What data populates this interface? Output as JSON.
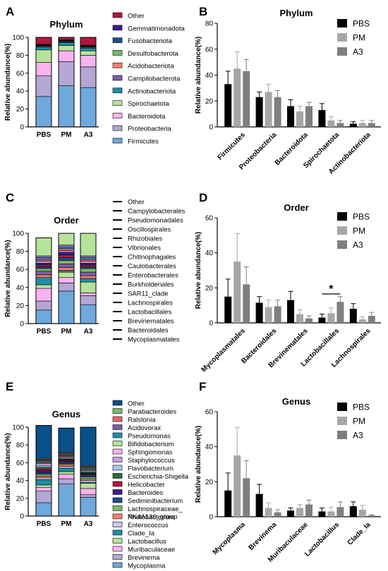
{
  "chart_data": [
    {
      "panel": "A",
      "type": "bar",
      "stacked": true,
      "title": "Phylum",
      "ylabel": "Relative abundance(%)",
      "xlabel": "",
      "ylim": [
        0,
        100
      ],
      "yticks": [
        0,
        20,
        40,
        60,
        80,
        100
      ],
      "categories": [
        "PBS",
        "PM",
        "A3"
      ],
      "series": [
        {
          "name": "Firmicutes",
          "color": "#6fa8dc",
          "values": [
            34,
            46,
            44
          ]
        },
        {
          "name": "Proteobacteria",
          "color": "#b4a7d6",
          "values": [
            23,
            27,
            23
          ]
        },
        {
          "name": "Bacteroidota",
          "color": "#f9b3f0",
          "values": [
            15,
            12,
            13
          ]
        },
        {
          "name": "Spirochaetota",
          "color": "#b6e39a",
          "values": [
            14,
            6,
            5
          ]
        },
        {
          "name": "Actinobacteriota",
          "color": "#1f8fa6",
          "values": [
            3,
            3,
            3
          ]
        },
        {
          "name": "Campilobacterota",
          "color": "#7b5ea7",
          "values": [
            1,
            1,
            1
          ]
        },
        {
          "name": "Acidobacteriota",
          "color": "#f4806f",
          "values": [
            0.6,
            0.6,
            0.6
          ]
        },
        {
          "name": "Desulfobacterota",
          "color": "#7cb76a",
          "values": [
            0.6,
            0.6,
            0.6
          ]
        },
        {
          "name": "Fusobacteriota",
          "color": "#1f4e8c",
          "values": [
            0.5,
            0.5,
            0.5
          ]
        },
        {
          "name": "Gemmatimonadota",
          "color": "#3b1f8c",
          "values": [
            0.5,
            0.5,
            0.5
          ]
        },
        {
          "name": "Other",
          "color": "#b3163c",
          "values": [
            7.8,
            2.8,
            8.8
          ]
        }
      ]
    },
    {
      "panel": "B",
      "type": "bar",
      "title": "Phylum",
      "ylabel": "Relative abundance(%)",
      "xlabel": "",
      "ylim": [
        0,
        80
      ],
      "yticks": [
        0,
        20,
        40,
        60,
        80
      ],
      "categories": [
        "Firmicutes",
        "Proteobacteria",
        "Bacteroidota",
        "Spirochaetota",
        "Actinobacteriota"
      ],
      "series": [
        {
          "name": "PBS",
          "color": "#000000",
          "values": [
            33,
            23,
            16,
            13,
            2.5
          ],
          "errors": [
            10,
            4,
            5,
            5,
            1.5
          ]
        },
        {
          "name": "PM",
          "color": "#a6a6a6",
          "values": [
            45,
            27,
            12,
            5,
            3
          ],
          "errors": [
            13,
            6,
            4,
            3,
            2
          ]
        },
        {
          "name": "A3",
          "color": "#7f7f7f",
          "values": [
            43,
            23,
            16,
            3,
            3
          ],
          "errors": [
            9,
            5,
            3,
            2,
            2
          ]
        }
      ]
    },
    {
      "panel": "C",
      "type": "bar",
      "stacked": true,
      "title": "Order",
      "ylabel": "Relative abundance(%)",
      "xlabel": "",
      "ylim": [
        0,
        100
      ],
      "yticks": [
        0,
        20,
        40,
        60,
        80,
        100
      ],
      "categories": [
        "PBS",
        "PM",
        "A3"
      ],
      "series": [
        {
          "name": "Mycoplasmatales",
          "color": "#6fa8dc",
          "values": [
            15,
            36,
            21
          ]
        },
        {
          "name": "Bacteroidales",
          "color": "#b4a7d6",
          "values": [
            10,
            9,
            10
          ]
        },
        {
          "name": "Brevinematales",
          "color": "#f9b3f0",
          "values": [
            14,
            6,
            3
          ]
        },
        {
          "name": "Lactobacillales",
          "color": "#b6e39a",
          "values": [
            4,
            6,
            12
          ]
        },
        {
          "name": "Lachnospirales",
          "color": "#1f8fa6",
          "values": [
            8,
            2,
            4
          ]
        },
        {
          "name": "SAR11_clade",
          "color": "#f4806f",
          "values": [
            3,
            3,
            3
          ]
        },
        {
          "name": "Burkholderiales",
          "color": "#7b5ea7",
          "values": [
            4,
            4,
            4
          ]
        },
        {
          "name": "Enterobacterales",
          "color": "#7cb76a",
          "values": [
            3,
            4,
            4
          ]
        },
        {
          "name": "Caulobacterales",
          "color": "#1f4e8c",
          "values": [
            2,
            3,
            2
          ]
        },
        {
          "name": "Chitinophagales",
          "color": "#b3163c",
          "values": [
            2,
            3,
            2
          ]
        },
        {
          "name": "Vibrionales",
          "color": "#3b1f8c",
          "values": [
            2,
            3,
            2
          ]
        },
        {
          "name": "Rhizobiales",
          "color": "#c8a2e0",
          "values": [
            2,
            2,
            2
          ]
        },
        {
          "name": "Oscillospirales",
          "color": "#e06666",
          "values": [
            2,
            2,
            2
          ]
        },
        {
          "name": "Pseudomonadales",
          "color": "#4a86c5",
          "values": [
            2,
            2,
            2
          ]
        },
        {
          "name": "Campylobacterales",
          "color": "#8e7cc3",
          "values": [
            2,
            2,
            2
          ]
        },
        {
          "name": "Other",
          "color": "#b6e39a",
          "values": [
            20,
            13,
            25
          ]
        }
      ]
    },
    {
      "panel": "D",
      "type": "bar",
      "title": "Order",
      "ylabel": "Relative abundance(%)",
      "xlabel": "",
      "ylim": [
        0,
        60
      ],
      "yticks": [
        0,
        20,
        40,
        60
      ],
      "categories": [
        "Mycoplasmatales",
        "Bacteroidales",
        "Brevinematales",
        "Lactobacillales",
        "Lachnospirales"
      ],
      "series": [
        {
          "name": "PBS",
          "color": "#000000",
          "values": [
            15,
            11.5,
            13,
            3,
            8
          ],
          "errors": [
            10,
            3.5,
            5,
            2,
            3
          ]
        },
        {
          "name": "PM",
          "color": "#a6a6a6",
          "values": [
            35,
            9,
            5,
            5.5,
            2
          ],
          "errors": [
            16,
            4,
            2.5,
            3,
            1.5
          ]
        },
        {
          "name": "A3",
          "color": "#7f7f7f",
          "values": [
            22,
            9.5,
            2.5,
            12,
            4
          ],
          "errors": [
            10,
            3.5,
            1.5,
            3,
            2
          ]
        }
      ],
      "annotations": [
        {
          "text": "*",
          "category": "Lactobacillales"
        }
      ]
    },
    {
      "panel": "E",
      "type": "bar",
      "stacked": true,
      "title": "Genus",
      "ylabel": "Relative abundance(%)",
      "xlabel": "",
      "ylim": [
        0,
        100
      ],
      "yticks": [
        0,
        20,
        40,
        60,
        80,
        100
      ],
      "categories": [
        "PBS",
        "PM",
        "A3"
      ],
      "series": [
        {
          "name": "Mycoplasma",
          "color": "#6fa8dc",
          "values": [
            15,
            36,
            21
          ]
        },
        {
          "name": "Brevinema",
          "color": "#b4a7d6",
          "values": [
            13,
            6,
            3
          ]
        },
        {
          "name": "Muribaculaceae",
          "color": "#f9b3f0",
          "values": [
            4,
            5,
            7
          ]
        },
        {
          "name": "Lactobacillus",
          "color": "#b6e39a",
          "values": [
            3,
            3,
            6
          ]
        },
        {
          "name": "Clade_Ia",
          "color": "#1f8fa6",
          "values": [
            6,
            4,
            1
          ]
        },
        {
          "name": "Enterococcus",
          "color": "#c9c9f0",
          "values": [
            2,
            2,
            2
          ]
        },
        {
          "name": "Photobacterium",
          "color": "#f4806f",
          "values": [
            2,
            2,
            2
          ]
        },
        {
          "name": "Lachnospiraceae_ NK4A136_group",
          "color": "#7cb76a",
          "values": [
            2,
            1,
            2
          ]
        },
        {
          "name": "Sediminibacterium",
          "color": "#1f4e8c",
          "values": [
            2,
            2,
            2
          ]
        },
        {
          "name": "Bacteroides",
          "color": "#3b1f8c",
          "values": [
            2,
            1,
            1
          ]
        },
        {
          "name": "Helicobacter",
          "color": "#b3163c",
          "values": [
            2,
            1,
            1
          ]
        },
        {
          "name": "Escherichia-Shigella",
          "color": "#2e6b3f",
          "values": [
            2,
            1,
            1
          ]
        },
        {
          "name": "Flavobacterium",
          "color": "#a8c8f0",
          "values": [
            2,
            1,
            1
          ]
        },
        {
          "name": "Staphylococcus",
          "color": "#c8a2e0",
          "values": [
            2,
            1,
            1
          ]
        },
        {
          "name": "Sphingomonas",
          "color": "#f9b3f0",
          "values": [
            1,
            1,
            1
          ]
        },
        {
          "name": "Bifidobacterium",
          "color": "#b6e39a",
          "values": [
            1,
            1,
            1
          ]
        },
        {
          "name": "Pseudomonas",
          "color": "#1f8fa6",
          "values": [
            1,
            1,
            1
          ]
        },
        {
          "name": "Acidovorax",
          "color": "#7b5ea7",
          "values": [
            1,
            1,
            1
          ]
        },
        {
          "name": "Ralstonia",
          "color": "#e06666",
          "values": [
            1,
            1,
            1
          ]
        },
        {
          "name": "Parabacteroides",
          "color": "#7cb76a",
          "values": [
            1,
            1,
            1
          ]
        },
        {
          "name": "Other",
          "color": "#0b4f8a",
          "values": [
            37,
            27,
            43
          ]
        }
      ]
    },
    {
      "panel": "F",
      "type": "bar",
      "title": "Genus",
      "ylabel": "Relative abundance(%)",
      "xlabel": "",
      "ylim": [
        0,
        60
      ],
      "yticks": [
        0,
        20,
        40,
        60
      ],
      "categories": [
        "Mycoplasma",
        "Brevinema",
        "Muribaculaceae",
        "Lactobacillus",
        "Clade_Ia"
      ],
      "series": [
        {
          "name": "PBS",
          "color": "#000000",
          "values": [
            15,
            13,
            3.5,
            3,
            6
          ],
          "errors": [
            10,
            5.5,
            1.5,
            2,
            2.5
          ]
        },
        {
          "name": "PM",
          "color": "#a6a6a6",
          "values": [
            35,
            5,
            5,
            3,
            4
          ],
          "errors": [
            16,
            3,
            2,
            2.5,
            2.5
          ]
        },
        {
          "name": "A3",
          "color": "#7f7f7f",
          "values": [
            22,
            2.5,
            7,
            5.5,
            0.8
          ],
          "errors": [
            10,
            1.5,
            2.5,
            3,
            0.4
          ]
        }
      ]
    }
  ]
}
